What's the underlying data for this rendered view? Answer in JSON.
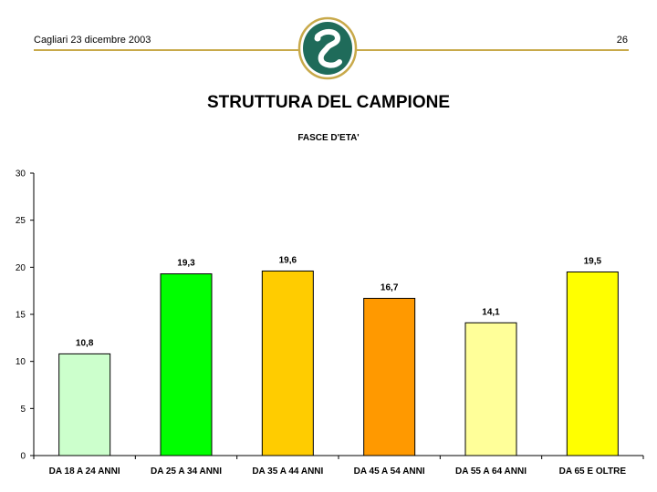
{
  "header": {
    "location_date": "Cagliari 23 dicembre 2003",
    "page_number": "26",
    "rule_color": "#c8a94a",
    "logo_color": "#1f6b5a",
    "logo_ring_color": "#c8a94a"
  },
  "chart_data": {
    "type": "bar",
    "title": "STRUTTURA DEL CAMPIONE",
    "subtitle": "FASCE D'ETA'",
    "categories": [
      "DA 18 A 24 ANNI",
      "DA 25 A 34 ANNI",
      "DA 35 A 44 ANNI",
      "DA 45 A 54 ANNI",
      "DA 55 A 64 ANNI",
      "DA 65 E OLTRE"
    ],
    "values": [
      10.8,
      19.3,
      19.6,
      16.7,
      14.1,
      19.5
    ],
    "value_labels": [
      "10,8",
      "19,3",
      "19,6",
      "16,7",
      "14,1",
      "19,5"
    ],
    "colors": [
      "#ccffcc",
      "#00ff00",
      "#ffcc00",
      "#ff9900",
      "#ffff99",
      "#ffff00"
    ],
    "ylim": [
      0,
      30
    ],
    "yticks": [
      0,
      5,
      10,
      15,
      20,
      25,
      30
    ],
    "grid": false,
    "legend": "none"
  }
}
